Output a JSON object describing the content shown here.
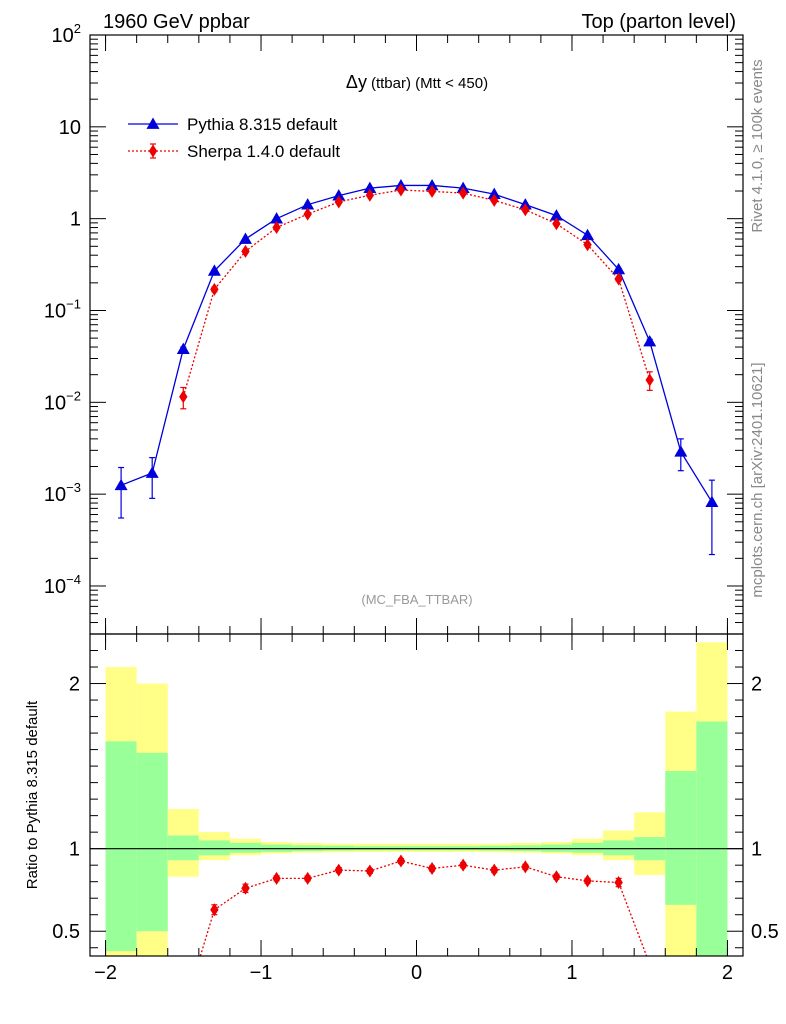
{
  "header": {
    "left": "1960 GeV ppbar",
    "right": "Top (parton level)"
  },
  "side_labels": {
    "rivet": "Rivet 4.1.0, ≥ 100k events",
    "mcplots": "mcplots.cern.ch [arXiv:2401.10621]"
  },
  "colors": {
    "pythia": "#0000dd",
    "sherpa": "#ee0000",
    "band_outer": "#ffff88",
    "band_inner": "#99ff99"
  },
  "chart_data": [
    {
      "type": "line",
      "panel": "main",
      "title_main": "Δy",
      "title_sub": "(ttbar) (Mtt < 450)",
      "watermark": "(MC_FBA_TTBAR)",
      "yscale": "log",
      "ylim": [
        3e-05,
        100
      ],
      "xlim": [
        -2.1,
        2.1
      ],
      "legend_position": "top-left",
      "y_ticks": [
        {
          "v": 100,
          "base": "10",
          "exp": "2"
        },
        {
          "v": 10,
          "base": "10",
          "exp": ""
        },
        {
          "v": 1,
          "base": "1",
          "exp": ""
        },
        {
          "v": 0.1,
          "base": "10",
          "exp": "−1"
        },
        {
          "v": 0.01,
          "base": "10",
          "exp": "−2"
        },
        {
          "v": 0.001,
          "base": "10",
          "exp": "−3"
        },
        {
          "v": 0.0001,
          "base": "10",
          "exp": "−4"
        }
      ],
      "series": [
        {
          "name": "Pythia 8.315 default",
          "marker": "triangle",
          "x": [
            -1.9,
            -1.7,
            -1.5,
            -1.3,
            -1.1,
            -0.9,
            -0.7,
            -0.5,
            -0.3,
            -0.1,
            0.1,
            0.3,
            0.5,
            0.7,
            0.9,
            1.1,
            1.3,
            1.5,
            1.7,
            1.9
          ],
          "y": [
            0.00125,
            0.0017,
            0.038,
            0.27,
            0.6,
            1.0,
            1.42,
            1.78,
            2.15,
            2.3,
            2.3,
            2.15,
            1.85,
            1.42,
            1.08,
            0.66,
            0.28,
            0.046,
            0.0029,
            0.00082
          ],
          "err": [
            0.0007,
            0.0008,
            0.002,
            0.008,
            0.012,
            0.015,
            0.018,
            0.02,
            0.022,
            0.023,
            0.023,
            0.022,
            0.02,
            0.018,
            0.015,
            0.012,
            0.008,
            0.0025,
            0.0011,
            0.0006
          ]
        },
        {
          "name": "Sherpa 1.4.0 default",
          "marker": "diamond",
          "x": [
            -1.5,
            -1.3,
            -1.1,
            -0.9,
            -0.7,
            -0.5,
            -0.3,
            -0.1,
            0.1,
            0.3,
            0.5,
            0.7,
            0.9,
            1.1,
            1.3,
            1.5
          ],
          "y": [
            0.0115,
            0.17,
            0.44,
            0.8,
            1.12,
            1.52,
            1.8,
            2.05,
            1.98,
            1.9,
            1.58,
            1.25,
            0.88,
            0.52,
            0.22,
            0.0175
          ],
          "err": [
            0.003,
            0.01,
            0.015,
            0.018,
            0.02,
            0.022,
            0.024,
            0.025,
            0.025,
            0.024,
            0.022,
            0.02,
            0.018,
            0.015,
            0.01,
            0.004
          ]
        }
      ]
    },
    {
      "type": "line",
      "panel": "ratio",
      "ylabel": "Ratio to Pythia 8.315 default",
      "ylim": [
        0.35,
        2.3
      ],
      "xlim": [
        -2.1,
        2.1
      ],
      "x_ticks": [
        -2,
        -1,
        0,
        1,
        2
      ],
      "x_tick_labels": [
        "−2",
        "−1",
        "0",
        "1",
        "2"
      ],
      "y_ticks": [
        0.5,
        1,
        2
      ],
      "y_tick_labels": [
        "0.5",
        "1",
        "2"
      ],
      "bands": {
        "edges": [
          -2,
          -1.8,
          -1.6,
          -1.4,
          -1.2,
          -1,
          -0.8,
          -0.6,
          -0.4,
          -0.2,
          0,
          0.2,
          0.4,
          0.6,
          0.8,
          1,
          1.2,
          1.4,
          1.6,
          1.8,
          2
        ],
        "outer_lo": [
          0.35,
          0.35,
          0.83,
          0.93,
          0.96,
          0.97,
          0.975,
          0.978,
          0.98,
          0.98,
          0.98,
          0.98,
          0.978,
          0.975,
          0.97,
          0.96,
          0.93,
          0.84,
          0.35,
          0.35
        ],
        "outer_hi": [
          2.1,
          2.0,
          1.24,
          1.1,
          1.06,
          1.04,
          1.035,
          1.03,
          1.03,
          1.03,
          1.03,
          1.03,
          1.03,
          1.035,
          1.04,
          1.06,
          1.11,
          1.22,
          1.83,
          2.25
        ],
        "inner_lo": [
          0.38,
          0.5,
          0.93,
          0.96,
          0.975,
          0.98,
          0.985,
          0.988,
          0.99,
          0.99,
          0.99,
          0.99,
          0.988,
          0.985,
          0.98,
          0.975,
          0.96,
          0.93,
          0.66,
          0.35
        ],
        "inner_hi": [
          1.65,
          1.58,
          1.08,
          1.05,
          1.035,
          1.025,
          1.02,
          1.018,
          1.015,
          1.015,
          1.015,
          1.015,
          1.018,
          1.02,
          1.025,
          1.035,
          1.05,
          1.07,
          1.47,
          1.77
        ]
      },
      "series": [
        {
          "name": "Sherpa 1.4.0 default",
          "marker": "diamond",
          "x": [
            -1.3,
            -1.1,
            -0.9,
            -0.7,
            -0.5,
            -0.3,
            -0.1,
            0.1,
            0.3,
            0.5,
            0.7,
            0.9,
            1.1,
            1.3
          ],
          "y": [
            0.63,
            0.76,
            0.82,
            0.82,
            0.87,
            0.865,
            0.925,
            0.88,
            0.9,
            0.87,
            0.89,
            0.83,
            0.805,
            0.795
          ],
          "err": [
            0.03,
            0.025,
            0.015,
            0.015,
            0.015,
            0.015,
            0.015,
            0.015,
            0.015,
            0.015,
            0.015,
            0.015,
            0.015,
            0.025
          ],
          "edge_from": {
            "x": -1.39,
            "y": 0.35
          },
          "edge_to": {
            "x": 1.48,
            "y": 0.35
          }
        }
      ]
    }
  ]
}
